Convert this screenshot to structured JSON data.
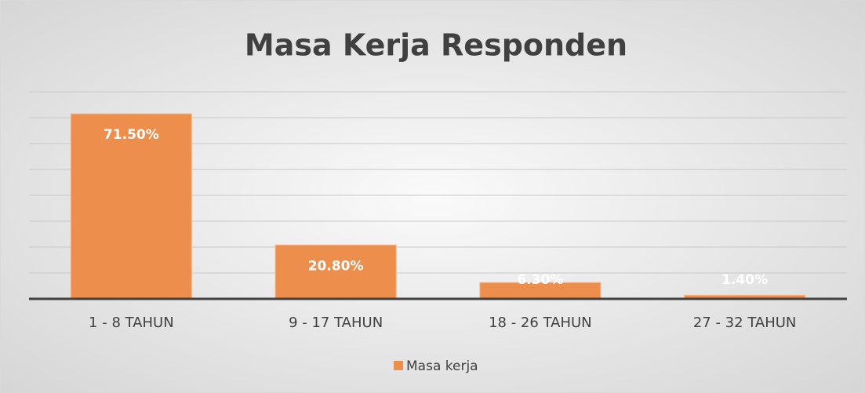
{
  "chart_data": {
    "type": "bar",
    "title": "Masa Kerja Responden",
    "categories": [
      "1 - 8 TAHUN",
      "9 - 17 TAHUN",
      "18 - 26 TAHUN",
      "27 - 32 TAHUN"
    ],
    "series": [
      {
        "name": "Masa kerja",
        "color": "#ed8e4c",
        "values": [
          71.5,
          20.8,
          6.3,
          1.4
        ],
        "value_labels": [
          "71.50%",
          "20.80%",
          "6.30%",
          "1.40%"
        ]
      }
    ],
    "ylim": [
      0,
      80
    ],
    "yticks": [
      0,
      10,
      20,
      30,
      40,
      50,
      60,
      70,
      80
    ],
    "grid": true,
    "legend": "bottom"
  }
}
